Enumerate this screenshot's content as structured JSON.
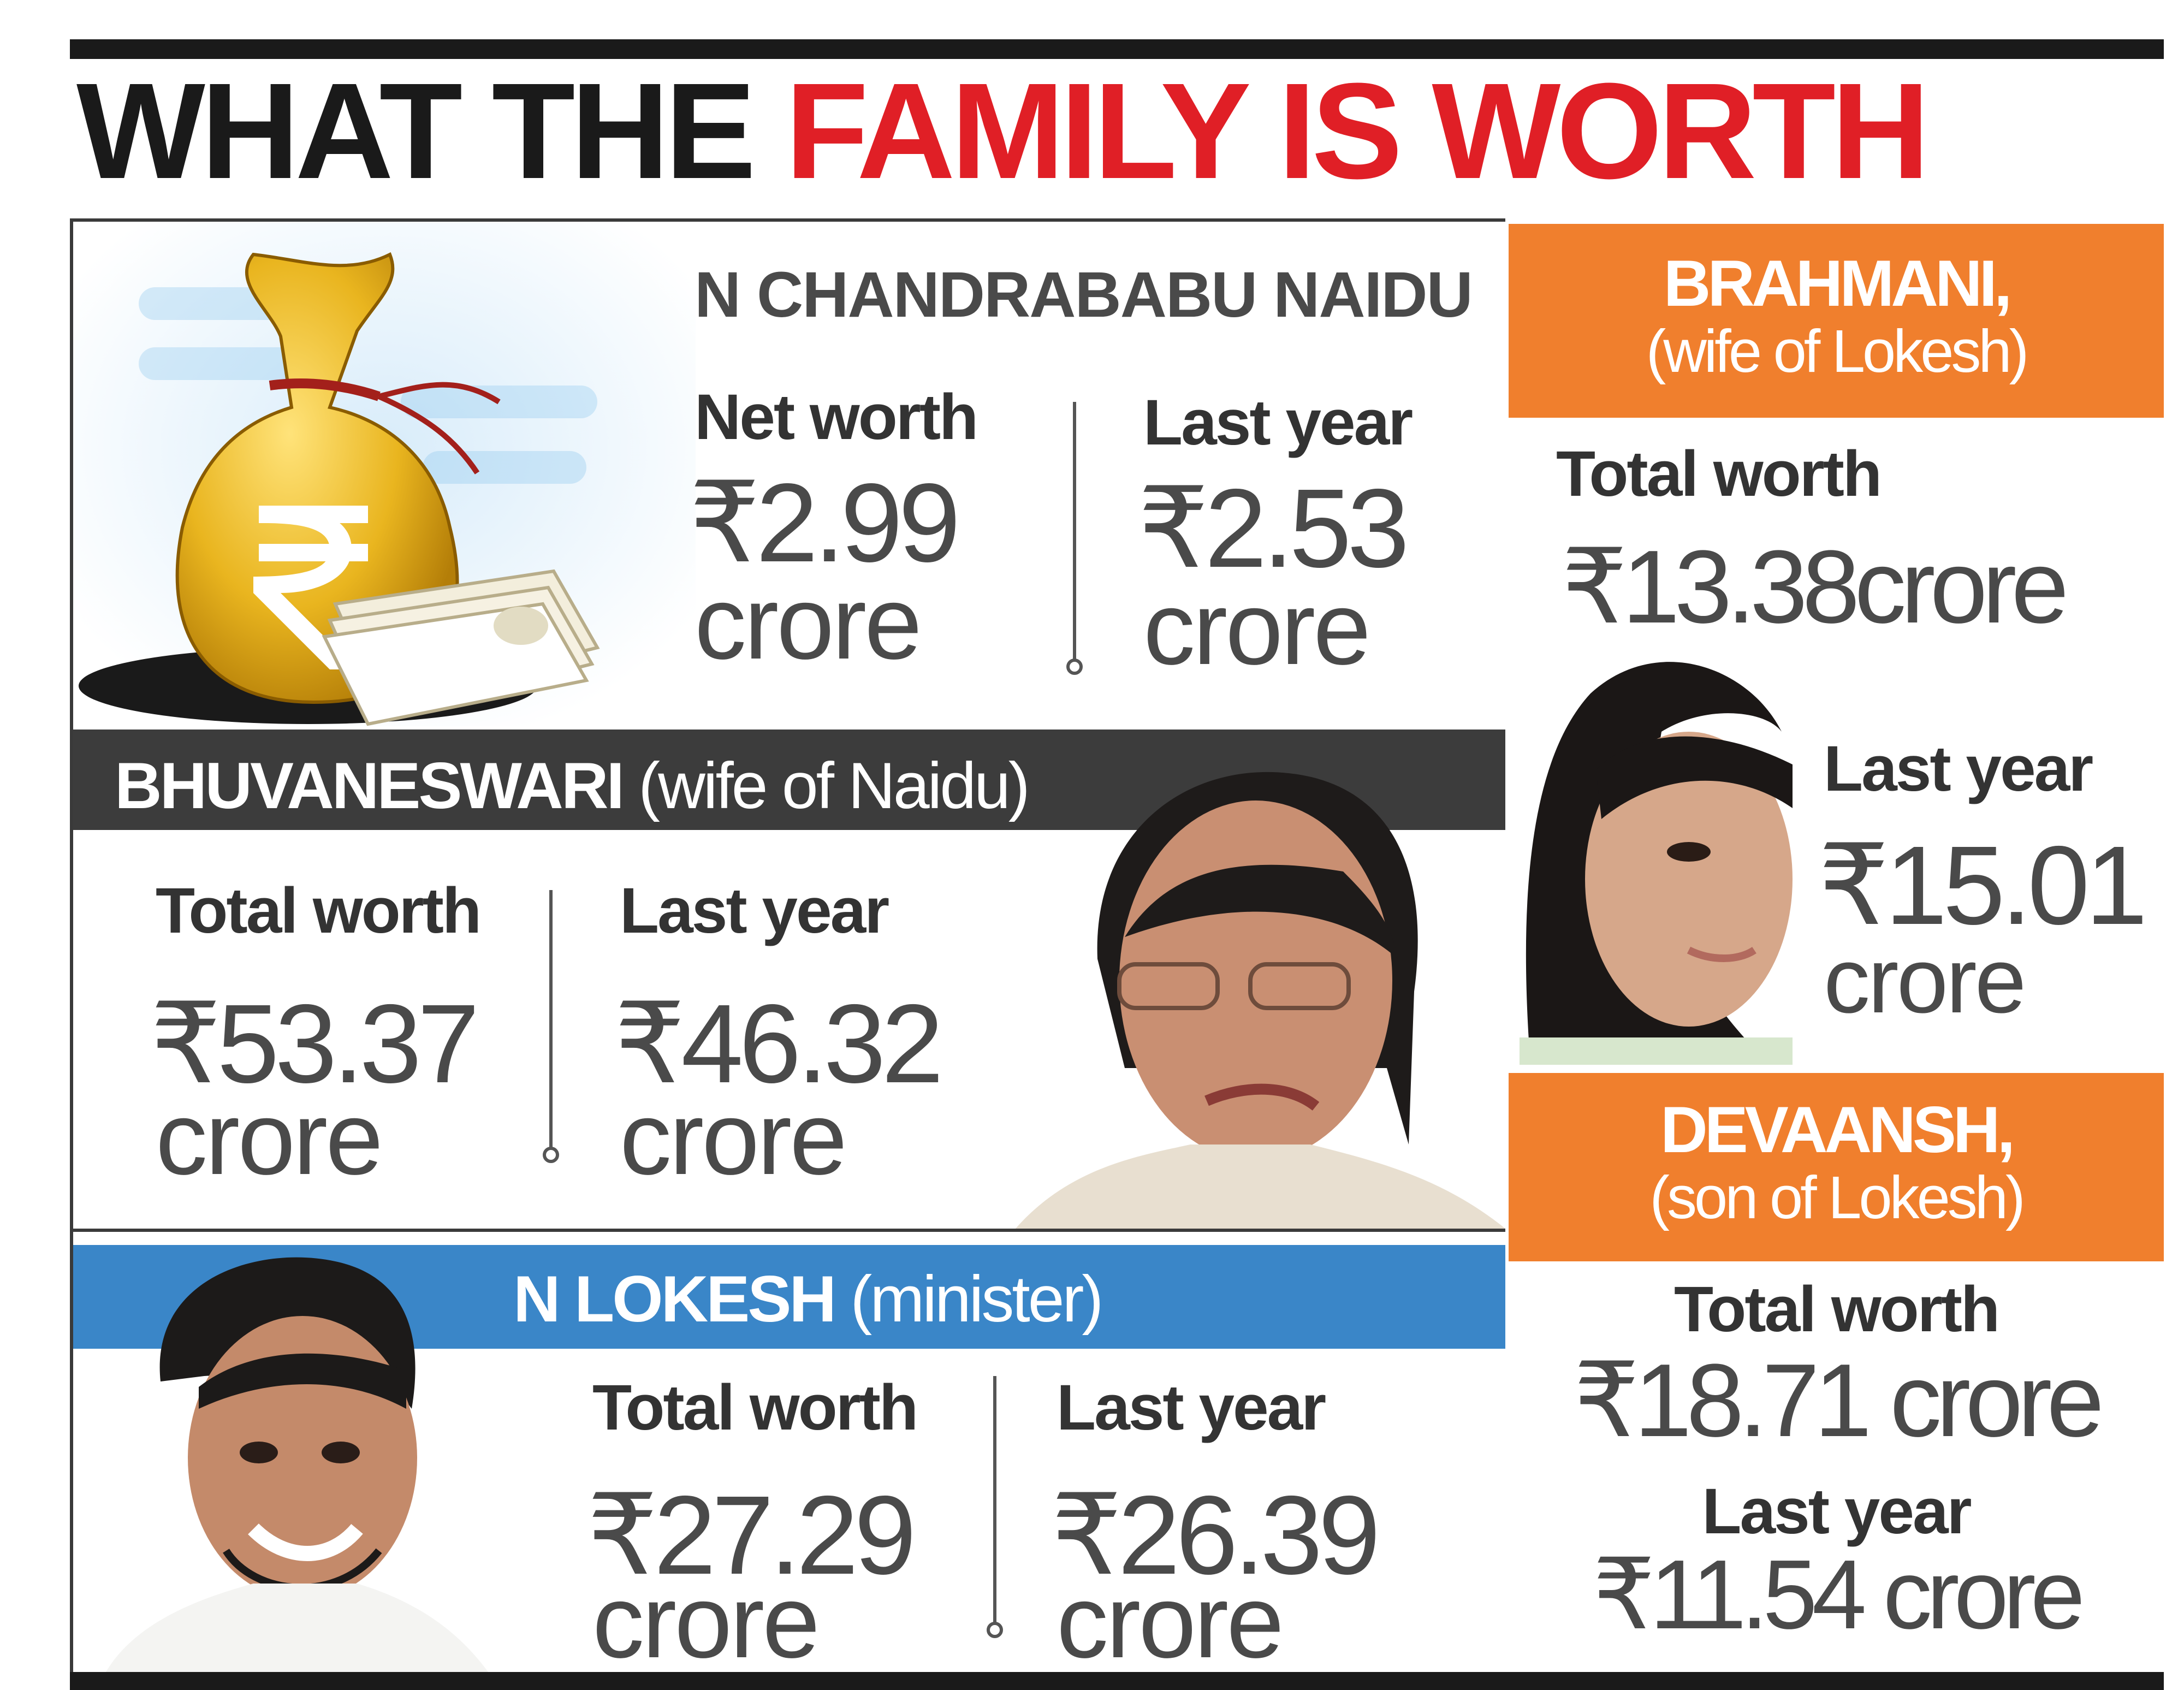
{
  "title": {
    "part1": "WHAT THE ",
    "part2": "FAMILY IS WORTH"
  },
  "colors": {
    "accent_red": "#e01f26",
    "orange": "#f07f2d",
    "blue": "#3a86c8",
    "dark_banner": "#3c3c3c"
  },
  "icons": {
    "money_bag": "money-bag-icon",
    "rupee": "rupee-icon",
    "currency_notes": "currency-notes-icon"
  },
  "naidu": {
    "name": "N CHANDRABABU NAIDU",
    "current_label": "Net worth",
    "current_value": "₹2.99",
    "current_unit": "crore",
    "last_label": "Last year",
    "last_value": "₹2.53",
    "last_unit": "crore"
  },
  "bhuvaneswari": {
    "name": "BHUVANESWARI",
    "role": "(wife of Naidu)",
    "current_label": "Total worth",
    "current_value": "₹53.37",
    "current_unit": "crore",
    "last_label": "Last year",
    "last_value": "₹46.32",
    "last_unit": "crore"
  },
  "lokesh": {
    "name": "N LOKESH",
    "role": "(minister)",
    "current_label": "Total worth",
    "current_value": "₹27.29",
    "current_unit": "crore",
    "last_label": "Last year",
    "last_value": "₹26.39",
    "last_unit": "crore"
  },
  "brahmani": {
    "name": "BRAHMANI,",
    "role": "(wife of Lokesh)",
    "current_label": "Total worth",
    "current_value": "₹13.38crore",
    "last_label": "Last year",
    "last_value": "₹15.01",
    "last_unit": "crore"
  },
  "devaansh": {
    "name": "DEVAANSH,",
    "role": "(son of Lokesh)",
    "current_label": "Total worth",
    "current_value": "₹18.71 crore",
    "last_label": "Last year",
    "last_value": "₹11.54 crore"
  }
}
